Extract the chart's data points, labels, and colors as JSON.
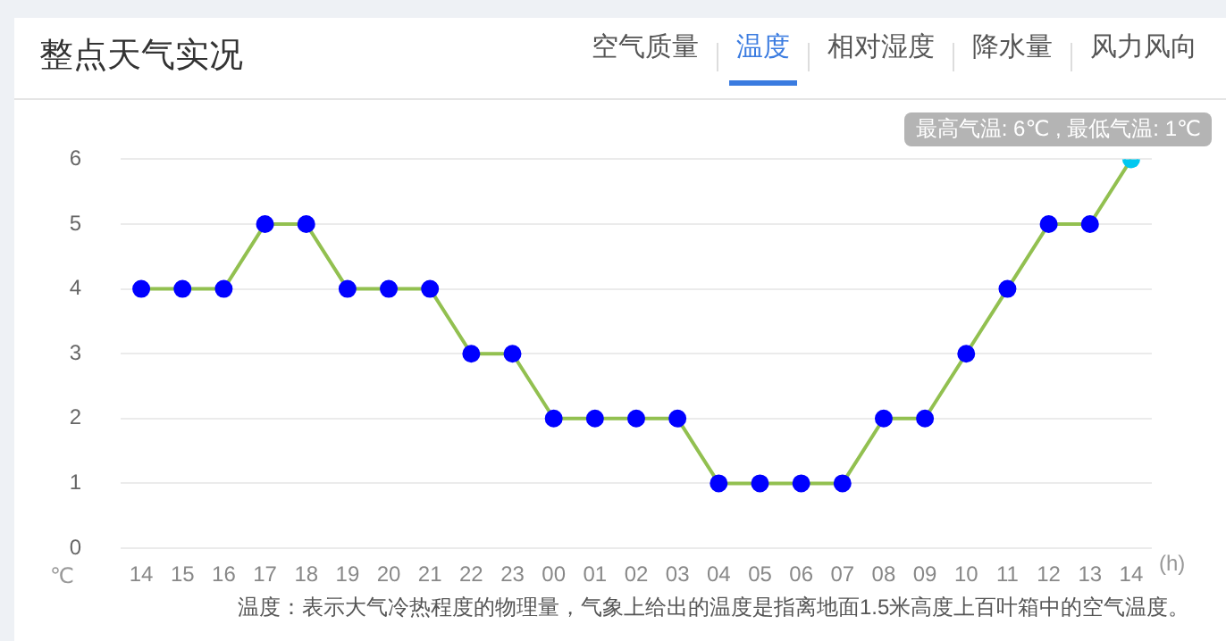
{
  "chart_data": {
    "type": "line",
    "title": "整点天气实况",
    "annotations": [
      "空气质量",
      "温度",
      "相对湿度",
      "降水量",
      "风力风向",
      "最高气温: 6℃ , 最低气温: 1℃",
      "温度：表示大气冷热程度的物理量，气象上给出的温度是指离地面1.5米高度上百叶箱中的空气温度。"
    ],
    "xlabel": "(h)",
    "ylabel": "℃",
    "categories": [
      "14",
      "15",
      "16",
      "17",
      "18",
      "19",
      "20",
      "21",
      "22",
      "23",
      "00",
      "01",
      "02",
      "03",
      "04",
      "05",
      "06",
      "07",
      "08",
      "09",
      "10",
      "11",
      "12",
      "13",
      "14"
    ],
    "series": [
      {
        "color": "#92c050",
        "colors": [
          "#0000ff",
          "#0000ff",
          "#0000ff",
          "#0000ff",
          "#0000ff",
          "#0000ff",
          "#0000ff",
          "#0000ff",
          "#0000ff",
          "#0000ff",
          "#0000ff",
          "#0000ff",
          "#0000ff",
          "#0000ff",
          "#0000ff",
          "#0000ff",
          "#0000ff",
          "#0000ff",
          "#0000ff",
          "#0000ff",
          "#0000ff",
          "#0000ff",
          "#0000ff",
          "#0000ff",
          "#00c8f0"
        ],
        "values": [
          4,
          4,
          4,
          5,
          5,
          4,
          4,
          4,
          3,
          3,
          2,
          2,
          2,
          2,
          1,
          1,
          1,
          1,
          2,
          2,
          3,
          4,
          5,
          5,
          6
        ]
      }
    ],
    "ylim": [
      0,
      6
    ],
    "yticks": [
      0,
      1,
      2,
      3,
      4,
      5,
      6
    ],
    "grid": "y",
    "marker": "circle"
  }
}
